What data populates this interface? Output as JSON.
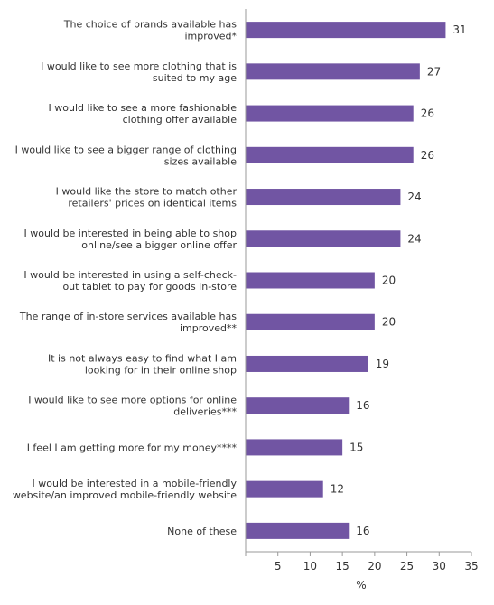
{
  "chart_data": {
    "type": "bar",
    "orientation": "horizontal",
    "categories": [
      [
        "The choice of brands available has",
        "improved*"
      ],
      [
        "I would like to see more clothing that is",
        "suited to my age"
      ],
      [
        "I would like to see a more fashionable",
        "clothing offer available"
      ],
      [
        "I would like to see a bigger range of clothing",
        "sizes available"
      ],
      [
        "I would like the store to match other",
        "retailers' prices on identical  items"
      ],
      [
        "I would be interested in being able to shop",
        "online/see a bigger online offer"
      ],
      [
        "I would be interested in using a self-check-",
        "out tablet to pay for goods in-store"
      ],
      [
        "The range of in-store services available has",
        "improved**"
      ],
      [
        "It is not always easy to find what I am",
        "looking for in their online shop"
      ],
      [
        "I would like to see more options for online",
        "deliveries***"
      ],
      [
        "I feel I am getting more for my money****"
      ],
      [
        "I would be interested in a mobile-friendly",
        "website/an improved mobile-friendly website"
      ],
      [
        "None of these"
      ]
    ],
    "values": [
      31,
      27,
      26,
      26,
      24,
      24,
      20,
      20,
      19,
      16,
      15,
      12,
      16
    ],
    "xlabel": "%",
    "xlim": [
      0,
      35
    ],
    "xticks": [
      5,
      10,
      15,
      20,
      25,
      30,
      35
    ],
    "bar_color": "#7155a3",
    "grid": false,
    "legend": "none"
  }
}
